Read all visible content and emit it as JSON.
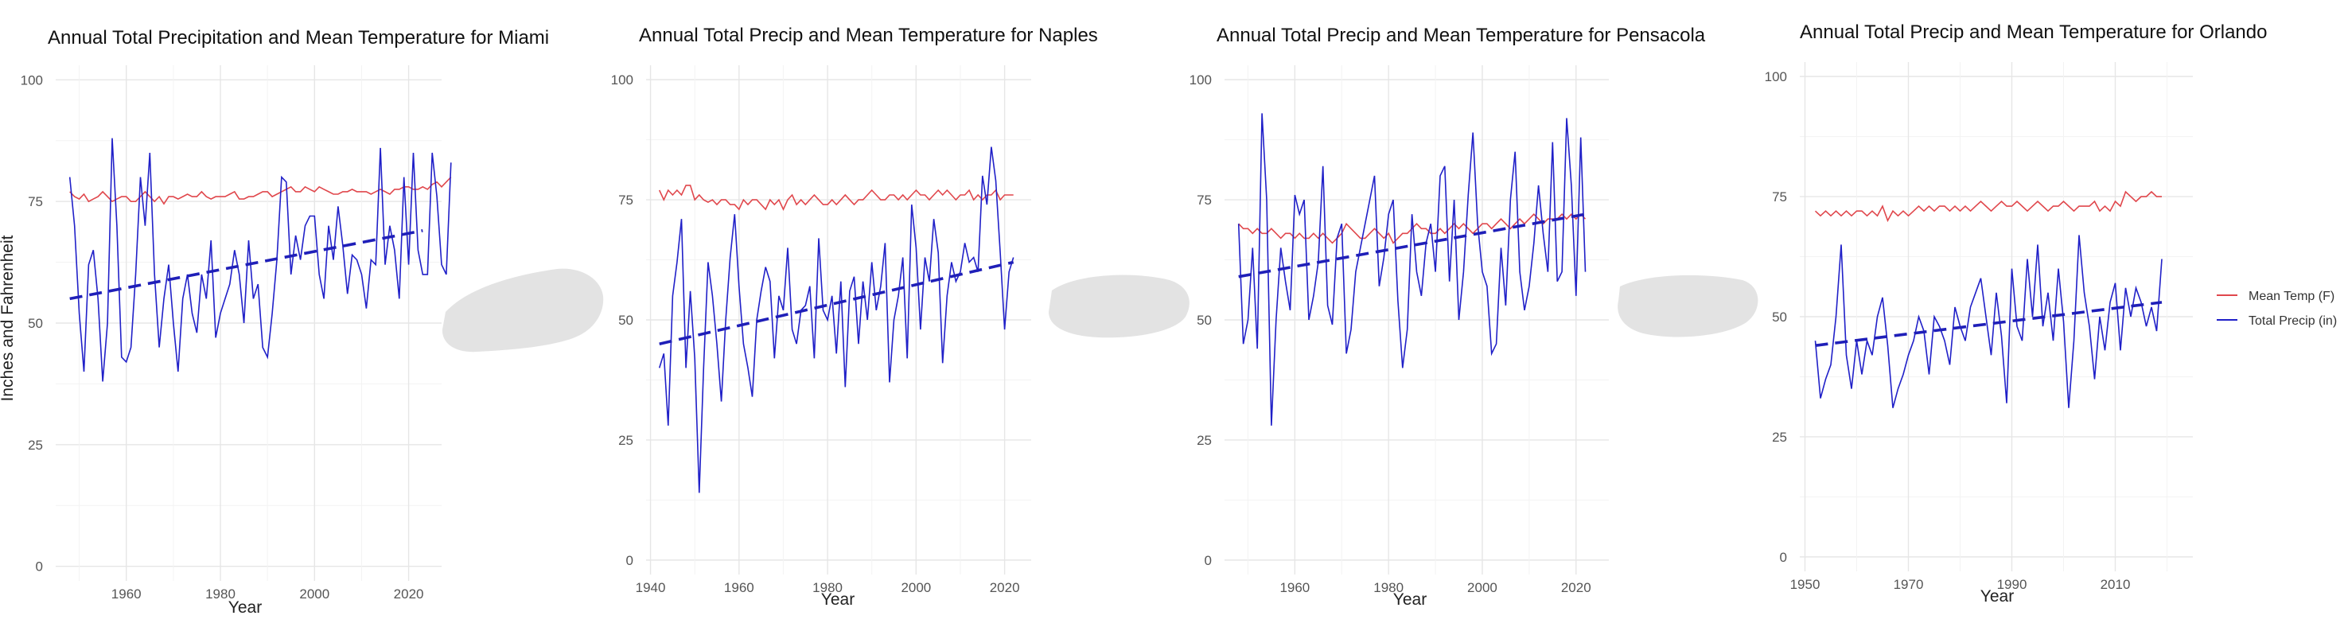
{
  "colors": {
    "temp": "#e0474c",
    "precip": "#2020c8",
    "trend": "#1f1fb8",
    "smudge": "#e3e3e3"
  },
  "legend": {
    "position": "right",
    "items": [
      "Mean Temp (F)",
      "Total Precip (in)"
    ]
  },
  "chart_data": [
    {
      "type": "line",
      "title": "Annual Total Precipitation and Mean Temperature for Miami",
      "xlabel": "Year",
      "ylabel": "Inches and Fahrenheit",
      "xticks": [
        1960,
        1980,
        2000,
        2020
      ],
      "yticks": [
        0,
        25,
        50,
        75,
        100
      ],
      "xlim": [
        1945,
        2027
      ],
      "ylim": [
        -3,
        103
      ],
      "grid": true,
      "series": [
        {
          "name": "Mean Temp (F)",
          "x0": 1948,
          "values": [
            77,
            76,
            75.5,
            76.5,
            75,
            75.5,
            76,
            77,
            76,
            75,
            75.5,
            76,
            76,
            75,
            75,
            76,
            77,
            76,
            75,
            76,
            74.5,
            76,
            76,
            75.5,
            76,
            76.5,
            76,
            76,
            77,
            76,
            75.5,
            76,
            76,
            76,
            76.5,
            77,
            75.5,
            75.5,
            76,
            76,
            76.5,
            77,
            77,
            76,
            76.5,
            77,
            77.5,
            78,
            77,
            77,
            78,
            77.5,
            77,
            78,
            77.5,
            77,
            76.5,
            76.5,
            77,
            77,
            77.5,
            77,
            77,
            77,
            76.5,
            77,
            77.5,
            77,
            76.5,
            77.5,
            77.5,
            78,
            78,
            77.5,
            77.5,
            78,
            77.5,
            78.5,
            79,
            78,
            79,
            80
          ]
        },
        {
          "name": "Total Precip (in)",
          "x0": 1948,
          "values": [
            80,
            70,
            52,
            40,
            62,
            65,
            55,
            38,
            50,
            88,
            70,
            43,
            42,
            45,
            60,
            80,
            70,
            85,
            60,
            45,
            55,
            62,
            50,
            40,
            55,
            60,
            52,
            48,
            60,
            55,
            67,
            47,
            52,
            55,
            58,
            65,
            60,
            50,
            67,
            55,
            58,
            45,
            43,
            52,
            63,
            80,
            79,
            60,
            68,
            63,
            70,
            72,
            72,
            60,
            55,
            70,
            63,
            74,
            66,
            56,
            64,
            63,
            60,
            53,
            63,
            62,
            86,
            62,
            70,
            65,
            55,
            80,
            62,
            85,
            65,
            60,
            60,
            85,
            76,
            62,
            60,
            83
          ]
        },
        {
          "name": "trend",
          "x": [
            1948,
            2023
          ],
          "values": [
            55,
            69
          ]
        }
      ]
    },
    {
      "type": "line",
      "title": "Annual Total Precip and Mean Temperature for Naples",
      "xlabel": "Year",
      "ylabel": "",
      "xticks": [
        1940,
        1960,
        1980,
        2000,
        2020
      ],
      "yticks": [
        0,
        25,
        50,
        75,
        100
      ],
      "xlim": [
        1939,
        2026
      ],
      "ylim": [
        -3,
        103
      ],
      "grid": true,
      "series": [
        {
          "name": "Mean Temp (F)",
          "x0": 1942,
          "values": [
            77,
            75,
            77,
            76,
            77,
            76,
            78,
            78,
            75,
            76,
            75,
            74.5,
            75,
            74,
            75,
            75,
            74,
            74,
            73,
            75,
            74,
            75,
            75,
            74,
            73,
            75,
            74,
            75,
            73,
            75,
            76,
            74,
            75,
            74,
            75,
            76,
            75,
            74,
            74,
            75,
            74,
            75,
            76,
            75,
            74,
            75,
            75,
            76,
            77,
            76,
            75,
            75,
            76,
            76,
            75,
            76,
            75,
            76,
            77,
            76,
            76,
            75,
            76,
            77,
            76,
            77,
            76,
            75,
            76,
            76,
            77,
            75,
            76,
            75,
            76,
            76,
            77,
            75,
            76,
            76,
            76
          ]
        },
        {
          "name": "Total Precip (in)",
          "x0": 1942,
          "values": [
            40,
            43,
            28,
            55,
            62,
            71,
            40,
            56,
            42,
            14,
            40,
            62,
            55,
            45,
            33,
            50,
            63,
            72,
            57,
            45,
            40,
            34,
            50,
            56,
            61,
            58,
            42,
            55,
            52,
            65,
            48,
            45,
            52,
            53,
            57,
            42,
            67,
            52,
            50,
            55,
            43,
            58,
            36,
            56,
            59,
            45,
            58,
            50,
            62,
            52,
            57,
            66,
            37,
            50,
            55,
            63,
            42,
            74,
            65,
            48,
            63,
            58,
            71,
            64,
            41,
            55,
            62,
            58,
            60,
            66,
            62,
            63,
            60,
            80,
            74,
            86,
            79,
            64,
            48,
            60,
            63
          ]
        },
        {
          "name": "trend",
          "x": [
            1942,
            2022
          ],
          "values": [
            45,
            62
          ]
        }
      ]
    },
    {
      "type": "line",
      "title": "Annual Total Precip and Mean Temperature for Pensacola",
      "xlabel": "Year",
      "ylabel": "",
      "xticks": [
        1960,
        1980,
        2000,
        2020
      ],
      "yticks": [
        0,
        25,
        50,
        75,
        100
      ],
      "xlim": [
        1945,
        2027
      ],
      "ylim": [
        -3,
        103
      ],
      "grid": true,
      "series": [
        {
          "name": "Mean Temp (F)",
          "x0": 1948,
          "values": [
            70,
            69,
            69,
            68,
            69,
            68,
            68,
            69,
            68,
            67,
            68,
            68,
            67,
            68,
            67,
            67,
            68,
            67,
            68,
            67,
            66,
            67,
            68,
            70,
            69,
            68,
            67,
            67,
            68,
            69,
            68,
            67,
            68,
            66,
            67,
            68,
            68,
            69,
            70,
            69,
            69,
            68,
            68,
            69,
            68,
            69,
            70,
            69,
            70,
            69,
            68,
            69,
            70,
            70,
            69,
            70,
            71,
            70,
            69,
            70,
            71,
            70,
            71,
            72,
            71,
            70,
            71,
            71,
            71,
            72,
            71,
            72,
            71,
            72,
            71
          ]
        },
        {
          "name": "Total Precip (in)",
          "x0": 1948,
          "values": [
            70,
            45,
            50,
            65,
            44,
            93,
            75,
            28,
            50,
            65,
            58,
            52,
            76,
            72,
            75,
            50,
            55,
            62,
            82,
            53,
            49,
            67,
            70,
            43,
            48,
            60,
            65,
            70,
            75,
            80,
            57,
            63,
            72,
            75,
            54,
            40,
            48,
            72,
            60,
            55,
            66,
            70,
            60,
            80,
            82,
            58,
            75,
            50,
            60,
            76,
            89,
            70,
            60,
            57,
            43,
            45,
            65,
            53,
            75,
            85,
            60,
            52,
            57,
            66,
            78,
            68,
            60,
            87,
            58,
            60,
            92,
            78,
            55,
            88,
            60
          ]
        },
        {
          "name": "trend",
          "x": [
            1948,
            2022
          ],
          "values": [
            59,
            72
          ]
        }
      ]
    },
    {
      "type": "line",
      "title": "Annual Total Precip and Mean Temperature for Orlando",
      "xlabel": "Year",
      "ylabel": "",
      "xticks": [
        1950,
        1970,
        1990,
        2010
      ],
      "yticks": [
        0,
        25,
        50,
        75,
        100
      ],
      "xlim": [
        1949,
        2025
      ],
      "ylim": [
        -3,
        103
      ],
      "grid": true,
      "series": [
        {
          "name": "Mean Temp (F)",
          "x0": 1952,
          "values": [
            72,
            71,
            72,
            71,
            72,
            71,
            72,
            71,
            72,
            72,
            71,
            72,
            71,
            73,
            70,
            72,
            71,
            72,
            71,
            72,
            73,
            72,
            73,
            72,
            73,
            73,
            72,
            73,
            72,
            73,
            72,
            73,
            74,
            73,
            72,
            73,
            74,
            73,
            73,
            74,
            73,
            72,
            73,
            74,
            73,
            72,
            73,
            73,
            74,
            73,
            72,
            73,
            73,
            73,
            74,
            72,
            73,
            72,
            74,
            73,
            76,
            75,
            74,
            75,
            75,
            76,
            75,
            75
          ]
        },
        {
          "name": "Total Precip (in)",
          "x0": 1952,
          "values": [
            45,
            33,
            37,
            40,
            50,
            65,
            42,
            35,
            45,
            38,
            45,
            42,
            50,
            54,
            44,
            31,
            35,
            38,
            42,
            45,
            50,
            47,
            38,
            50,
            48,
            45,
            40,
            52,
            48,
            45,
            52,
            55,
            58,
            50,
            42,
            55,
            46,
            32,
            60,
            48,
            45,
            62,
            50,
            65,
            48,
            55,
            45,
            60,
            49,
            31,
            45,
            67,
            55,
            48,
            37,
            50,
            43,
            53,
            57,
            43,
            56,
            50,
            56,
            53,
            48,
            52,
            47,
            62
          ]
        },
        {
          "name": "trend",
          "x": [
            1952,
            2019
          ],
          "values": [
            44,
            53
          ]
        }
      ]
    }
  ]
}
